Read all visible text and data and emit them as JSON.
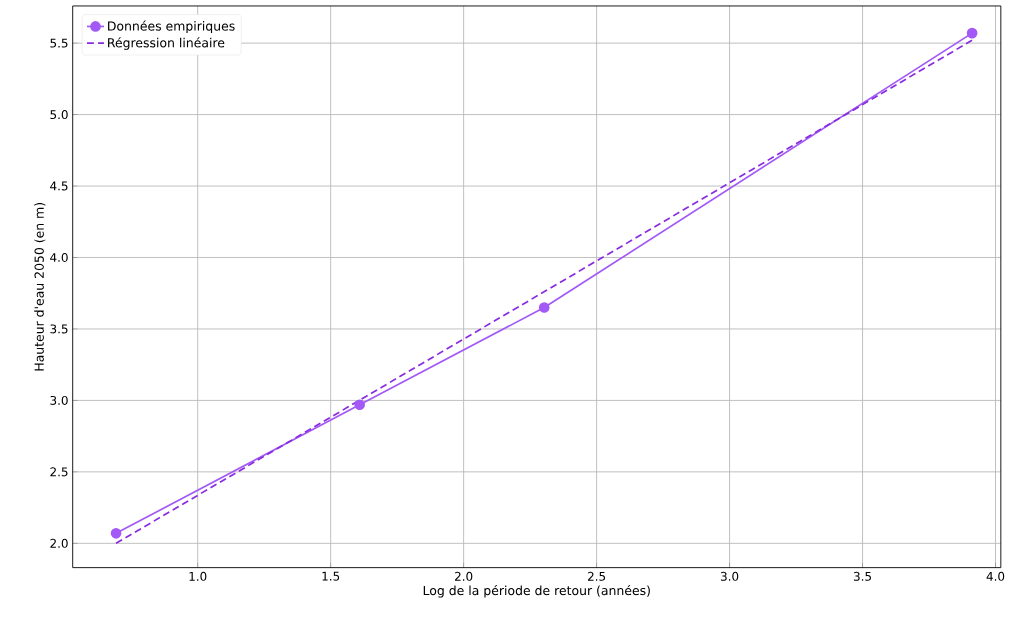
{
  "chart_data": {
    "type": "line",
    "xlabel": "Log de la période de retour (années)",
    "ylabel": "Hauteur d'eau 2050 (en m)",
    "series": [
      {
        "name": "Données empiriques",
        "color": "#a259f5",
        "marker": "circle",
        "line_style": "solid",
        "x": [
          0.693,
          1.609,
          2.303,
          3.912
        ],
        "values": [
          2.07,
          2.97,
          3.65,
          5.57
        ]
      },
      {
        "name": "Régression linéaire",
        "color": "#8a2be2",
        "marker": "none",
        "line_style": "dashed",
        "x": [
          0.693,
          3.912
        ],
        "values": [
          2.0,
          5.52
        ]
      }
    ],
    "xlim": [
      0.53,
      4.02
    ],
    "ylim": [
      1.83,
      5.76
    ],
    "xticks": [
      {
        "value": 1,
        "label": "1.0"
      },
      {
        "value": 1.5,
        "label": "1.5"
      },
      {
        "value": 2,
        "label": "2.0"
      },
      {
        "value": 2.5,
        "label": "2.5"
      },
      {
        "value": 3,
        "label": "3.0"
      },
      {
        "value": 3.5,
        "label": "3.5"
      },
      {
        "value": 4,
        "label": "4.0"
      }
    ],
    "yticks": [
      {
        "value": 2,
        "label": "2.0"
      },
      {
        "value": 2.5,
        "label": "2.5"
      },
      {
        "value": 3,
        "label": "3.0"
      },
      {
        "value": 3.5,
        "label": "3.5"
      },
      {
        "value": 4,
        "label": "4.0"
      },
      {
        "value": 4.5,
        "label": "4.5"
      },
      {
        "value": 5,
        "label": "5.0"
      },
      {
        "value": 5.5,
        "label": "5.5"
      }
    ],
    "grid": true,
    "legend": "top left"
  }
}
